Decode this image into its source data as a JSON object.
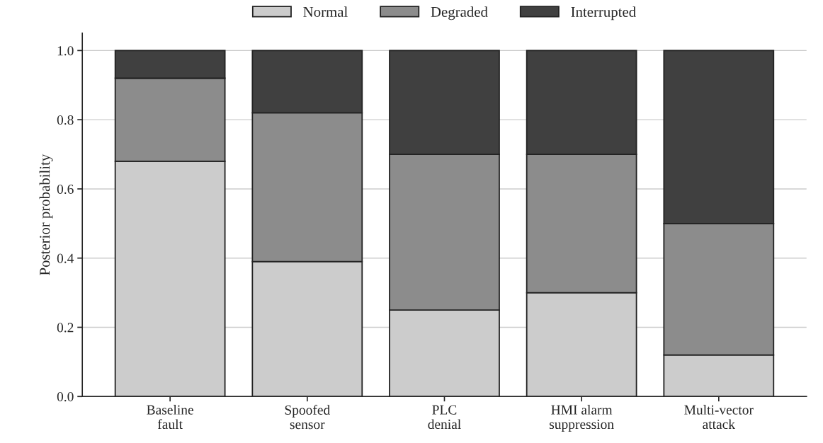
{
  "chart_data": {
    "type": "bar",
    "stacked": true,
    "ylabel": "Posterior probability",
    "categories": [
      "Baseline\nfault",
      "Spoofed\nsensor",
      "PLC\ndenial",
      "HMI alarm\nsuppression",
      "Multi-vector\nattack"
    ],
    "series": [
      {
        "name": "Normal",
        "color": "#cccccc",
        "values": [
          0.68,
          0.39,
          0.25,
          0.3,
          0.12
        ]
      },
      {
        "name": "Degraded",
        "color": "#8c8c8c",
        "values": [
          0.24,
          0.43,
          0.45,
          0.4,
          0.38
        ]
      },
      {
        "name": "Interrupted",
        "color": "#404040",
        "values": [
          0.08,
          0.18,
          0.3,
          0.3,
          0.5
        ]
      }
    ],
    "ylim": [
      0,
      1.05
    ],
    "yticks": [
      {
        "value": 0,
        "label": "0.0"
      },
      {
        "value": 0.2,
        "label": "0.2"
      },
      {
        "value": 0.4,
        "label": "0.4"
      },
      {
        "value": 0.6,
        "label": "0.6"
      },
      {
        "value": 0.8,
        "label": "0.8"
      },
      {
        "value": 1.0,
        "label": "1.0"
      }
    ],
    "grid": "y",
    "legend": "top"
  }
}
